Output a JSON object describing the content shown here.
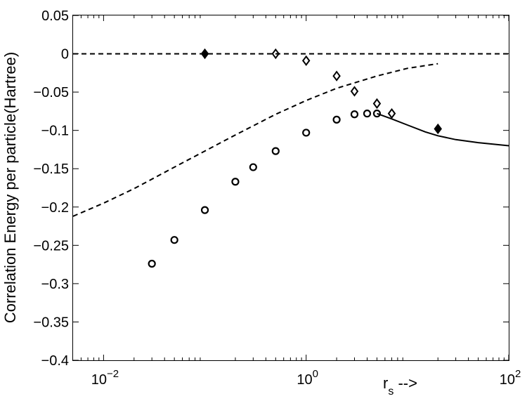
{
  "chart_data": {
    "type": "line",
    "ylabel": "Correlation Energy per particle(Hartree)",
    "xlabel": "r",
    "xlabel_sub": "s",
    "xlabel_suffix": " -->",
    "x_scale": "log",
    "xlim": [
      0.005,
      100
    ],
    "ylim": [
      -0.4,
      0.05
    ],
    "grid": false,
    "x_ticks": [
      {
        "value": 0.01,
        "base": "10",
        "exp": "−2"
      },
      {
        "value": 1,
        "base": "10",
        "exp": "0"
      },
      {
        "value": 100,
        "base": "10",
        "exp": "2"
      }
    ],
    "y_ticks": [
      {
        "value": 0.05,
        "label": "0.05"
      },
      {
        "value": 0,
        "label": "0"
      },
      {
        "value": -0.05,
        "label": "−0.05"
      },
      {
        "value": -0.1,
        "label": "−0.1"
      },
      {
        "value": -0.15,
        "label": "−0.15"
      },
      {
        "value": -0.2,
        "label": "−0.2"
      },
      {
        "value": -0.25,
        "label": "−0.25"
      },
      {
        "value": -0.3,
        "label": "−0.3"
      },
      {
        "value": -0.35,
        "label": "−0.35"
      },
      {
        "value": -0.4,
        "label": "−0.4"
      }
    ],
    "series": [
      {
        "style": "dashed-line",
        "x": [
          0.005,
          100
        ],
        "y": [
          0,
          0
        ]
      },
      {
        "style": "dashed-line",
        "x": [
          0.005,
          0.01,
          0.02,
          0.05,
          0.1,
          0.2,
          0.5,
          1,
          2,
          5,
          10,
          20
        ],
        "y": [
          -0.212,
          -0.195,
          -0.176,
          -0.148,
          -0.127,
          -0.106,
          -0.079,
          -0.061,
          -0.045,
          -0.029,
          -0.019,
          -0.013
        ]
      },
      {
        "style": "solid-line",
        "x": [
          5,
          7,
          10,
          15,
          20,
          30,
          50,
          100
        ],
        "y": [
          -0.078,
          -0.085,
          -0.093,
          -0.102,
          -0.107,
          -0.112,
          -0.116,
          -0.12
        ]
      },
      {
        "style": "circle-markers",
        "x": [
          0.03,
          0.05,
          0.1,
          0.2,
          0.3,
          0.5,
          1,
          2,
          3,
          4,
          5
        ],
        "y": [
          -0.274,
          -0.243,
          -0.204,
          -0.167,
          -0.148,
          -0.127,
          -0.103,
          -0.086,
          -0.079,
          -0.078,
          -0.078
        ]
      },
      {
        "style": "diamond-markers",
        "x": [
          0.1,
          0.5,
          1,
          2,
          3,
          5,
          7,
          20
        ],
        "y": [
          0,
          0,
          -0.009,
          -0.029,
          -0.049,
          -0.065,
          -0.078,
          -0.098
        ]
      }
    ]
  }
}
